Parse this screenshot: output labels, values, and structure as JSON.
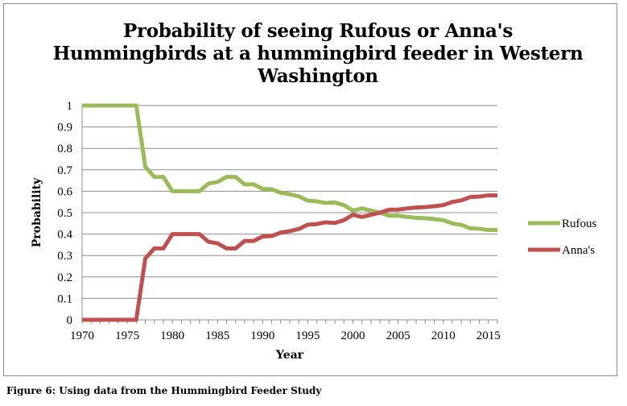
{
  "chart_data": {
    "type": "line",
    "title": "Probability of seeing Rufous or Anna's Hummingbirds at a hummingbird feeder in Western Washington",
    "xlabel": "Year",
    "ylabel": "Probability",
    "xlim": [
      1970,
      2016
    ],
    "ylim": [
      0,
      1
    ],
    "x_ticks": [
      "1970",
      "1975",
      "1980",
      "1985",
      "1990",
      "1995",
      "2000",
      "2005",
      "2010",
      "2015"
    ],
    "y_ticks": [
      "0",
      "0.1",
      "0.2",
      "0.3",
      "0.4",
      "0.5",
      "0.6",
      "0.7",
      "0.8",
      "0.9",
      "1"
    ],
    "grid": "horizontal",
    "legend_position": "right",
    "x": [
      1970,
      1971,
      1972,
      1973,
      1974,
      1975,
      1976,
      1977,
      1978,
      1979,
      1980,
      1981,
      1982,
      1983,
      1984,
      1985,
      1986,
      1987,
      1988,
      1989,
      1990,
      1991,
      1992,
      1993,
      1994,
      1995,
      1996,
      1997,
      1998,
      1999,
      2000,
      2001,
      2002,
      2003,
      2004,
      2005,
      2006,
      2007,
      2008,
      2009,
      2010,
      2011,
      2012,
      2013,
      2014,
      2015,
      2016
    ],
    "series": [
      {
        "name": "Rufous",
        "color": "#9bbb59",
        "values": [
          1,
          1,
          1,
          1,
          1,
          1,
          1,
          0.714,
          0.667,
          0.667,
          0.6,
          0.6,
          0.6,
          0.6,
          0.636,
          0.643,
          0.667,
          0.667,
          0.632,
          0.632,
          0.611,
          0.609,
          0.593,
          0.586,
          0.576,
          0.556,
          0.553,
          0.545,
          0.548,
          0.535,
          0.51,
          0.52,
          0.51,
          0.5,
          0.486,
          0.486,
          0.48,
          0.476,
          0.474,
          0.47,
          0.465,
          0.45,
          0.443,
          0.427,
          0.425,
          0.419,
          0.419
        ]
      },
      {
        "name": "Anna's",
        "color": "#c0504d",
        "values": [
          0,
          0,
          0,
          0,
          0,
          0,
          0,
          0.286,
          0.333,
          0.333,
          0.4,
          0.4,
          0.4,
          0.4,
          0.364,
          0.357,
          0.333,
          0.333,
          0.368,
          0.368,
          0.389,
          0.391,
          0.407,
          0.414,
          0.424,
          0.444,
          0.447,
          0.455,
          0.452,
          0.465,
          0.49,
          0.48,
          0.49,
          0.5,
          0.514,
          0.514,
          0.52,
          0.524,
          0.526,
          0.53,
          0.535,
          0.55,
          0.557,
          0.573,
          0.575,
          0.581,
          0.581
        ]
      }
    ]
  },
  "caption": "Figure 6: Using data from the Hummingbird Feeder Study"
}
